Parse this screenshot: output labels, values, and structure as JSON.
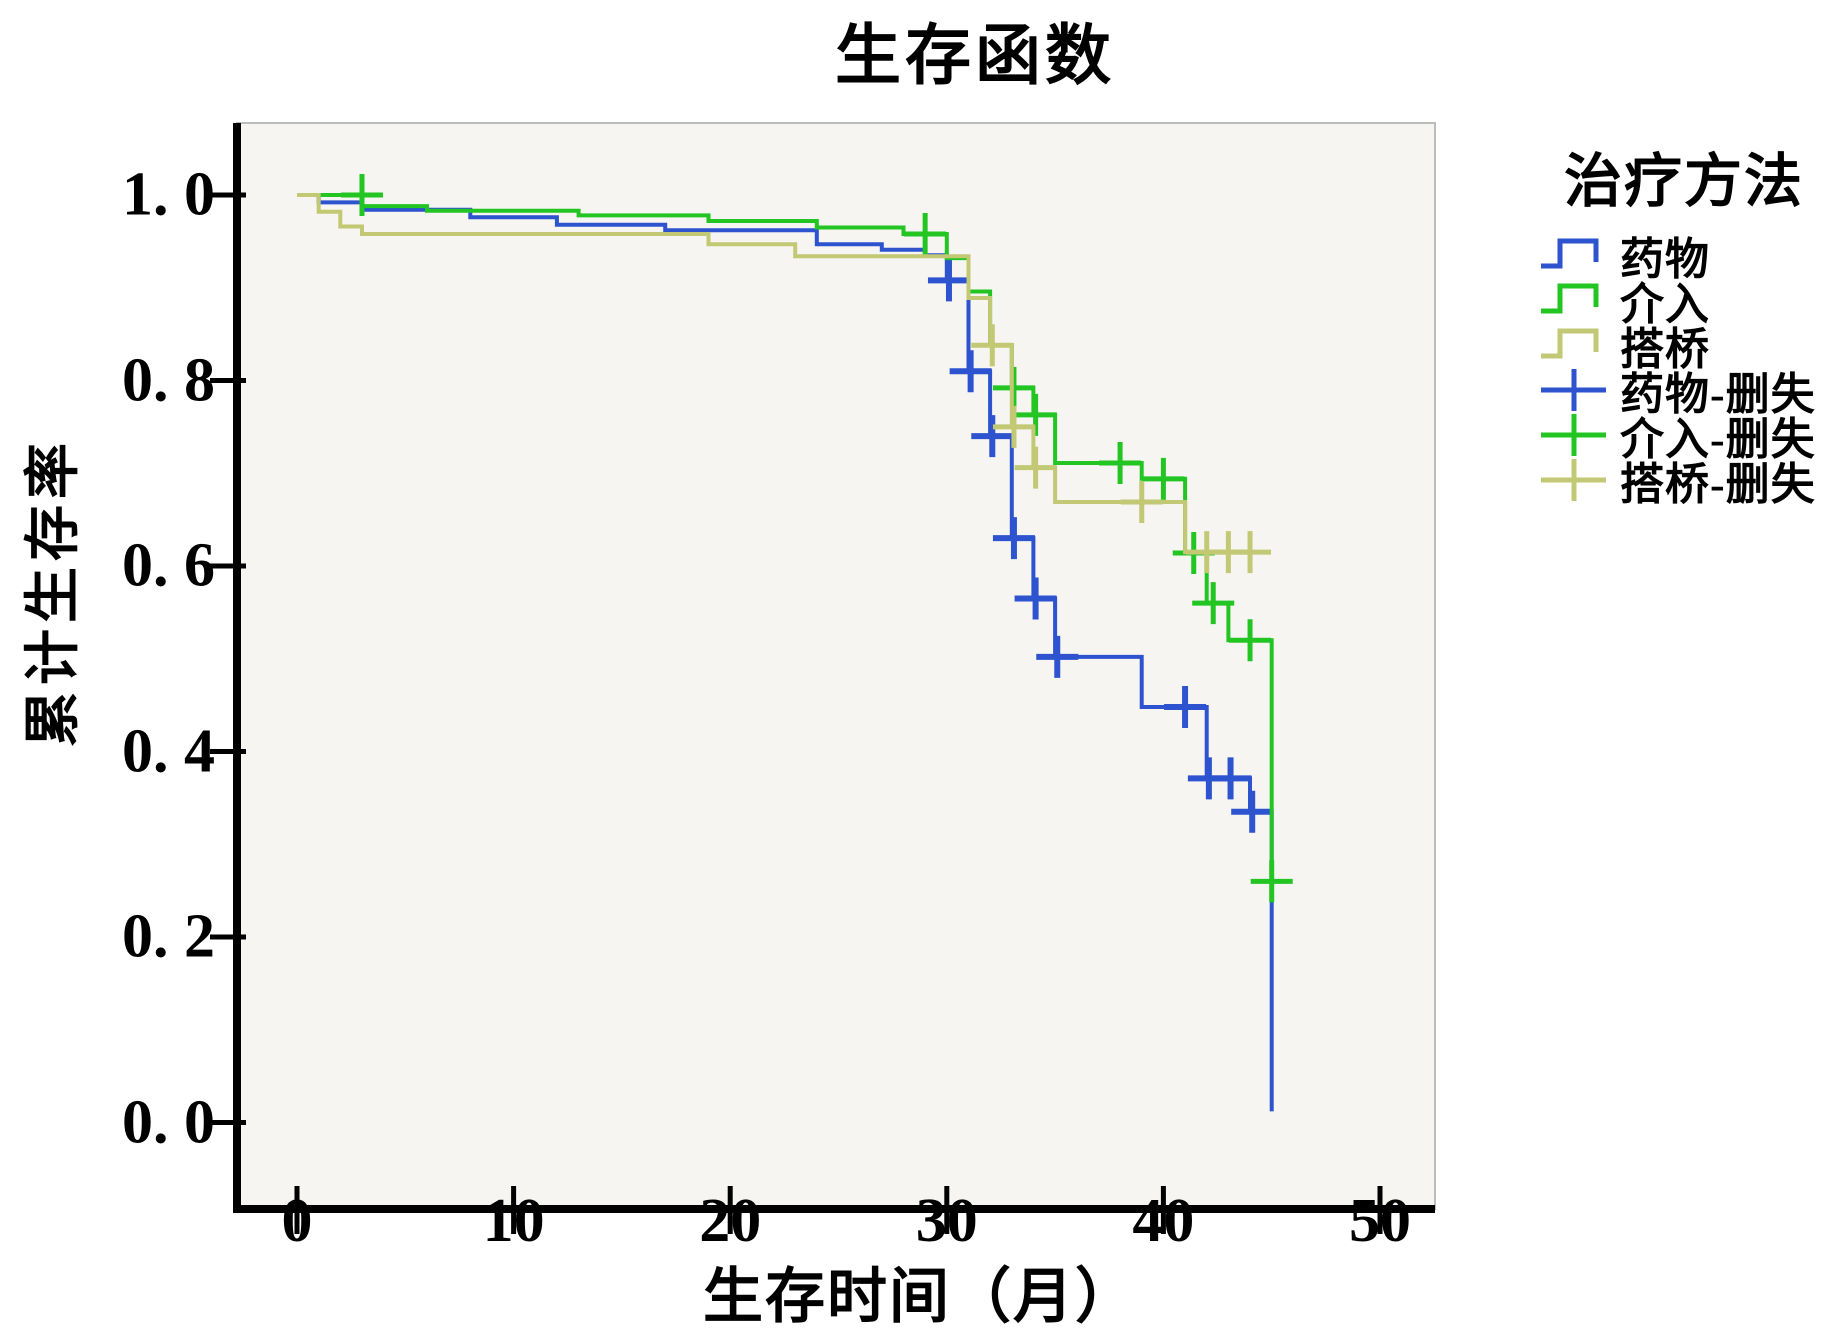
{
  "title": "生存函数",
  "axes": {
    "x": {
      "label": "生存时间（月）",
      "ticks": [
        {
          "v": 0,
          "label": "0"
        },
        {
          "v": 10,
          "label": "10"
        },
        {
          "v": 20,
          "label": "20"
        },
        {
          "v": 30,
          "label": "30"
        },
        {
          "v": 40,
          "label": "40"
        },
        {
          "v": 50,
          "label": "50"
        }
      ]
    },
    "y": {
      "label": "累计生存率",
      "ticks": [
        {
          "v": 1.0,
          "label": "1. 0"
        },
        {
          "v": 0.8,
          "label": "0. 8"
        },
        {
          "v": 0.6,
          "label": "0. 6"
        },
        {
          "v": 0.4,
          "label": "0. 4"
        },
        {
          "v": 0.2,
          "label": "0. 2"
        },
        {
          "v": 0.0,
          "label": "0. 0"
        }
      ]
    }
  },
  "legend": {
    "title": "治疗方法",
    "items": [
      {
        "label": "药物",
        "type": "step-line",
        "color": "#2d53cf"
      },
      {
        "label": "介入",
        "type": "step-line",
        "color": "#23c523"
      },
      {
        "label": "搭桥",
        "type": "step-line",
        "color": "#c2c873"
      },
      {
        "label": "药物-删失",
        "type": "censor-plus",
        "color": "#2d53cf"
      },
      {
        "label": "介入-删失",
        "type": "censor-plus",
        "color": "#23c523"
      },
      {
        "label": "搭桥-删失",
        "type": "censor-plus",
        "color": "#c2c873"
      }
    ]
  },
  "chart_data": {
    "type": "line",
    "subtype": "kaplan-meier-step",
    "title": "生存函数",
    "xlabel": "生存时间（月）",
    "ylabel": "累计生存率",
    "xlim": [
      0,
      52.5
    ],
    "ylim": [
      0,
      1.05
    ],
    "x_ticks": [
      0,
      10,
      20,
      30,
      40,
      50
    ],
    "y_ticks": [
      0.0,
      0.2,
      0.4,
      0.6,
      0.8,
      1.0
    ],
    "grid": false,
    "legend_position": "right",
    "panel_bg": "#f6f5f2",
    "panel_border": "#b9bdbb",
    "series": [
      {
        "name": "药物",
        "color": "#2d53cf",
        "censor_stroke": 6,
        "points": [
          [
            0,
            1.0
          ],
          [
            1,
            0.992
          ],
          [
            3,
            0.984
          ],
          [
            8,
            0.976
          ],
          [
            12,
            0.968
          ],
          [
            17,
            0.962
          ],
          [
            24,
            0.947
          ],
          [
            27,
            0.941
          ],
          [
            29,
            0.935
          ],
          [
            30,
            0.908
          ],
          [
            31,
            0.81
          ],
          [
            32,
            0.74
          ],
          [
            33,
            0.63
          ],
          [
            34,
            0.565
          ],
          [
            35,
            0.502
          ],
          [
            39,
            0.448
          ],
          [
            42,
            0.371
          ],
          [
            44,
            0.335
          ],
          [
            45,
            0.012
          ]
        ],
        "censors": [
          [
            30.1,
            0.908
          ],
          [
            31.1,
            0.81
          ],
          [
            32.1,
            0.74
          ],
          [
            33.1,
            0.63
          ],
          [
            34.1,
            0.565
          ],
          [
            35.1,
            0.502
          ],
          [
            41,
            0.448
          ],
          [
            42.1,
            0.371
          ],
          [
            43.1,
            0.371
          ],
          [
            44.1,
            0.335
          ]
        ]
      },
      {
        "name": "介入",
        "color": "#23c523",
        "censor_stroke": 5,
        "points": [
          [
            0,
            1.0
          ],
          [
            3,
            0.988
          ],
          [
            6,
            0.983
          ],
          [
            13,
            0.978
          ],
          [
            19,
            0.972
          ],
          [
            24,
            0.965
          ],
          [
            28,
            0.958
          ],
          [
            30,
            0.932
          ],
          [
            31,
            0.896
          ],
          [
            32,
            0.838
          ],
          [
            33,
            0.792
          ],
          [
            34,
            0.763
          ],
          [
            35,
            0.711
          ],
          [
            39,
            0.694
          ],
          [
            41,
            0.614
          ],
          [
            42,
            0.56
          ],
          [
            43,
            0.52
          ],
          [
            45,
            0.26
          ]
        ],
        "censors": [
          [
            3,
            1.0
          ],
          [
            29,
            0.958
          ],
          [
            33.1,
            0.792
          ],
          [
            34.1,
            0.763
          ],
          [
            38,
            0.711
          ],
          [
            40,
            0.694
          ],
          [
            41.4,
            0.614
          ],
          [
            42.3,
            0.56
          ],
          [
            44,
            0.52
          ],
          [
            45,
            0.26
          ]
        ]
      },
      {
        "name": "搭桥",
        "color": "#c2c873",
        "censor_stroke": 5,
        "tail_end": 44.4,
        "points": [
          [
            0,
            1.0
          ],
          [
            1,
            0.982
          ],
          [
            2,
            0.966
          ],
          [
            3,
            0.958
          ],
          [
            19,
            0.947
          ],
          [
            23,
            0.934
          ],
          [
            31,
            0.889
          ],
          [
            32,
            0.838
          ],
          [
            33,
            0.75
          ],
          [
            34,
            0.706
          ],
          [
            35,
            0.669
          ],
          [
            41,
            0.615
          ]
        ],
        "censors": [
          [
            32.1,
            0.838
          ],
          [
            33.1,
            0.75
          ],
          [
            34.1,
            0.706
          ],
          [
            39,
            0.669
          ],
          [
            42,
            0.615
          ],
          [
            43,
            0.615
          ],
          [
            44,
            0.615
          ]
        ]
      }
    ]
  }
}
